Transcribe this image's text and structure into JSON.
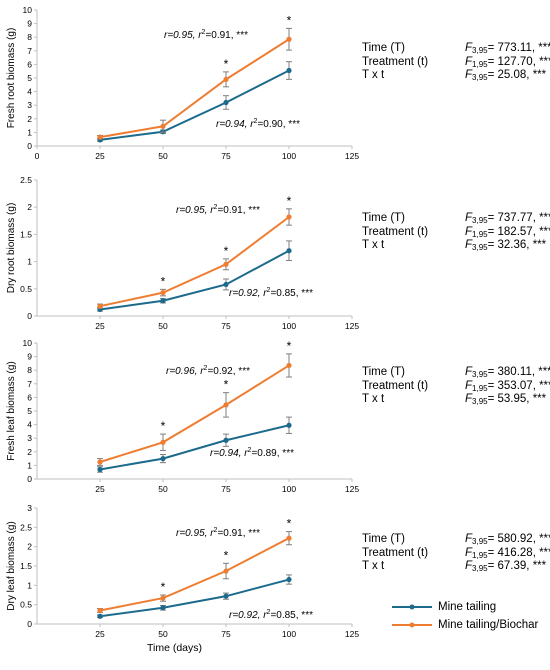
{
  "colors": {
    "mine_tailing": "#1c6a8c",
    "mine_tailing_biochar": "#ee7d31",
    "axis": "#bfbfbf",
    "text": "#000000"
  },
  "chart_data": [
    {
      "type": "line",
      "ylabel": "Fresh root biomass (g)",
      "xlabel": "",
      "xlim": [
        0,
        125
      ],
      "xticks": [
        0,
        25,
        50,
        75,
        100,
        125
      ],
      "ylim": [
        0,
        10
      ],
      "yticks": [
        0,
        1,
        2,
        3,
        4,
        5,
        6,
        7,
        8,
        9,
        10
      ],
      "x": [
        25,
        50,
        75,
        100
      ],
      "series": [
        {
          "name": "Mine tailing",
          "values": [
            0.45,
            1.05,
            3.2,
            5.55
          ],
          "errors": [
            0.1,
            0.12,
            0.5,
            0.65
          ]
        },
        {
          "name": "Mine tailing/Biochar",
          "values": [
            0.65,
            1.45,
            4.9,
            7.85
          ],
          "errors": [
            0.12,
            0.45,
            0.55,
            0.8
          ]
        }
      ],
      "significance": [
        false,
        false,
        true,
        true
      ],
      "corr_biochar": {
        "r": "r=0.95, r",
        "sup": "2",
        "rest": "=0.91, ***"
      },
      "corr_tailing": {
        "r": "r=0.94, r",
        "sup": "2",
        "rest": "=0.90, ***"
      },
      "stats": [
        {
          "label": "Time (T)",
          "f": "F",
          "df": "3,95",
          "value": "= 773.11, ***"
        },
        {
          "label": "Treatment (t)",
          "f": "F",
          "df": "1,95",
          "value": "= 127.70, ***"
        },
        {
          "label": "T x t",
          "f": "F",
          "df": "3,95",
          "value": "= 25.08, ***"
        }
      ]
    },
    {
      "type": "line",
      "ylabel": "Dry root biomass (g)",
      "xlabel": "",
      "xlim": [
        0,
        125
      ],
      "xticks": [
        25,
        50,
        75,
        100,
        125
      ],
      "ylim": [
        0,
        2.5
      ],
      "yticks": [
        0,
        0.5,
        1,
        1.5,
        2,
        2.5
      ],
      "x": [
        25,
        50,
        75,
        100
      ],
      "series": [
        {
          "name": "Mine tailing",
          "values": [
            0.12,
            0.28,
            0.58,
            1.2
          ],
          "errors": [
            0.03,
            0.04,
            0.1,
            0.18
          ]
        },
        {
          "name": "Mine tailing/Biochar",
          "values": [
            0.18,
            0.43,
            0.95,
            1.82
          ],
          "errors": [
            0.04,
            0.06,
            0.1,
            0.15
          ]
        }
      ],
      "significance": [
        false,
        true,
        true,
        true
      ],
      "corr_biochar": {
        "r": "r=0.95, r",
        "sup": "2",
        "rest": "=0.91, ***"
      },
      "corr_tailing": {
        "r": "r=0.92, r",
        "sup": "2",
        "rest": "=0.85, ***"
      },
      "stats": [
        {
          "label": "Time (T)",
          "f": "F",
          "df": "3,95",
          "value": "= 737.77, ***"
        },
        {
          "label": "Treatment (t)",
          "f": "F",
          "df": "1,95",
          "value": "= 182.57, ***"
        },
        {
          "label": "T x t",
          "f": "F",
          "df": "3,95",
          "value": "= 32.36, ***"
        }
      ]
    },
    {
      "type": "line",
      "ylabel": "Fresh leaf biomass (g)",
      "xlabel": "",
      "xlim": [
        0,
        125
      ],
      "xticks": [
        25,
        50,
        75,
        100,
        125
      ],
      "ylim": [
        0,
        10
      ],
      "yticks": [
        0,
        1,
        2,
        3,
        4,
        5,
        6,
        7,
        8,
        9,
        10
      ],
      "x": [
        25,
        50,
        75,
        100
      ],
      "series": [
        {
          "name": "Mine tailing",
          "values": [
            0.7,
            1.5,
            2.85,
            3.95
          ],
          "errors": [
            0.2,
            0.3,
            0.45,
            0.6
          ]
        },
        {
          "name": "Mine tailing/Biochar",
          "values": [
            1.25,
            2.7,
            5.45,
            8.35
          ],
          "errors": [
            0.25,
            0.6,
            0.9,
            0.85
          ]
        }
      ],
      "significance": [
        false,
        true,
        true,
        true
      ],
      "corr_biochar": {
        "r": "r=0.96, r",
        "sup": "2",
        "rest": "=0.92, ***"
      },
      "corr_tailing": {
        "r": "r=0.94, r",
        "sup": "2",
        "rest": "=0.89, ***"
      },
      "stats": [
        {
          "label": "Time (T)",
          "f": "F",
          "df": "3,95",
          "value": "= 380.11, ***"
        },
        {
          "label": "Treatment (t)",
          "f": "F",
          "df": "1,95",
          "value": "= 353.07, ***"
        },
        {
          "label": "T x t",
          "f": "F",
          "df": "3,95",
          "value": "= 53.95, ***"
        }
      ]
    },
    {
      "type": "line",
      "ylabel": "Dry leaf biomass (g)",
      "xlabel": "Time (days)",
      "xlim": [
        0,
        125
      ],
      "xticks": [
        25,
        50,
        75,
        100,
        125
      ],
      "ylim": [
        0,
        3
      ],
      "yticks": [
        0,
        0.5,
        1,
        1.5,
        2,
        2.5,
        3
      ],
      "x": [
        25,
        50,
        75,
        100
      ],
      "series": [
        {
          "name": "Mine tailing",
          "values": [
            0.2,
            0.42,
            0.72,
            1.15
          ],
          "errors": [
            0.03,
            0.06,
            0.08,
            0.12
          ]
        },
        {
          "name": "Mine tailing/Biochar",
          "values": [
            0.35,
            0.67,
            1.37,
            2.22
          ],
          "errors": [
            0.05,
            0.08,
            0.2,
            0.17
          ]
        }
      ],
      "significance": [
        false,
        true,
        true,
        true
      ],
      "corr_biochar": {
        "r": "r=0.95, r",
        "sup": "2",
        "rest": "=0.91, ***"
      },
      "corr_tailing": {
        "r": "r=0.92, r",
        "sup": "2",
        "rest": "=0.85, ***"
      },
      "stats": [
        {
          "label": "Time (T)",
          "f": "F",
          "df": "3,95",
          "value": "= 580.92, ***"
        },
        {
          "label": "Treatment (t)",
          "f": "F",
          "df": "1,95",
          "value": "= 416.28, ***"
        },
        {
          "label": "T x t",
          "f": "F",
          "df": "3,95",
          "value": "= 67.39, ***"
        }
      ]
    }
  ],
  "legend": {
    "items": [
      {
        "name": "Mine tailing"
      },
      {
        "name": "Mine tailing/Biochar"
      }
    ]
  },
  "significance_marker": "*"
}
